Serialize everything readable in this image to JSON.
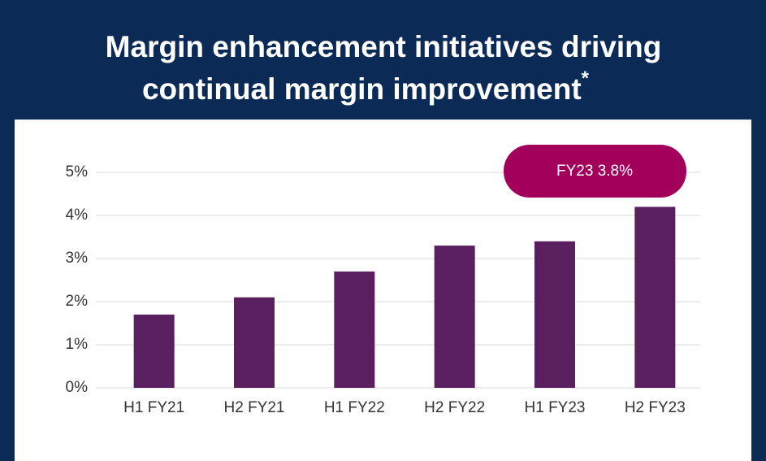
{
  "chart_data": {
    "type": "bar",
    "title_lines": [
      "Margin enhancement initiatives driving",
      "continual margin improvement"
    ],
    "title_note": "*",
    "annotation": "FY23 3.8%",
    "categories": [
      "H1 FY21",
      "H2 FY21",
      "H1 FY22",
      "H2 FY22",
      "H1 FY23",
      "H2 FY23"
    ],
    "values": [
      1.7,
      2.1,
      2.7,
      3.3,
      3.4,
      4.2
    ],
    "color": "#5a1f5e",
    "annotation_color": "#a3005b",
    "ylim": [
      0,
      5
    ],
    "yticks": [
      {
        "value": 0,
        "label": "0%"
      },
      {
        "value": 1,
        "label": "1%"
      },
      {
        "value": 2,
        "label": "2%"
      },
      {
        "value": 3,
        "label": "3%"
      },
      {
        "value": 4,
        "label": "4%"
      },
      {
        "value": 5,
        "label": "5%"
      }
    ],
    "grid": true
  }
}
